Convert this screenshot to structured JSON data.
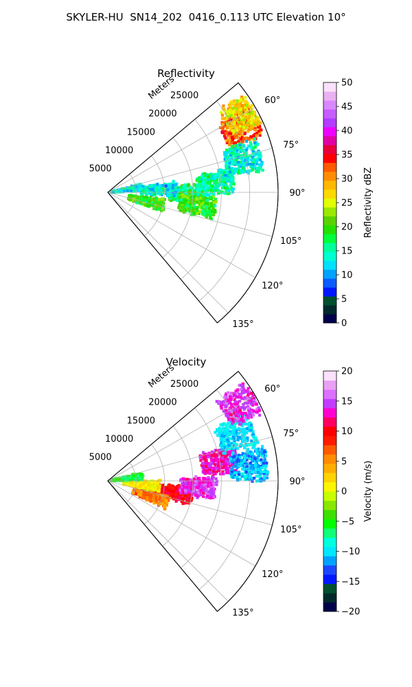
{
  "figure_title": "SKYLER-HU  SN14_202  0416_0.113 UTC Elevation 10°",
  "chart_data": [
    {
      "type": "heatmap",
      "subtype": "polar-sector radar PPI",
      "title": "Reflectivity",
      "radial_axis_label": "Meters",
      "radial_ticks": [
        5000,
        10000,
        15000,
        20000,
        25000
      ],
      "radial_tick_labels": [
        "5000",
        "10000",
        "15000",
        "20000",
        "25000"
      ],
      "angular_range_deg": [
        50,
        140
      ],
      "angular_ticks": [
        60,
        75,
        90,
        105,
        120,
        135
      ],
      "angular_tick_labels": [
        "60°",
        "75°",
        "90°",
        "105°",
        "120°",
        "135°"
      ],
      "grid": true,
      "colorbar": {
        "label": "Reflectivity dBZ",
        "range": [
          0,
          50
        ],
        "ticks": [
          0,
          5,
          10,
          15,
          20,
          25,
          30,
          35,
          40,
          45,
          50
        ],
        "tick_labels": [
          "0",
          "5",
          "10",
          "15",
          "20",
          "25",
          "30",
          "35",
          "40",
          "45",
          "50"
        ]
      },
      "echo_cells": [
        {
          "az": 91,
          "range_m": 14000,
          "value": 17
        },
        {
          "az": 98,
          "range_m": 16000,
          "value": 20
        },
        {
          "az": 85,
          "range_m": 19000,
          "value": 15
        },
        {
          "az": 64,
          "range_m": 26000,
          "value": 32
        },
        {
          "az": 60,
          "range_m": 27500,
          "value": 27
        },
        {
          "az": 76,
          "range_m": 24500,
          "value": 14
        },
        {
          "az": 87,
          "range_m": 9000,
          "value": 13
        },
        {
          "az": 103,
          "range_m": 7000,
          "value": 20
        },
        {
          "az": 82,
          "range_m": 3000,
          "value": 14
        }
      ]
    },
    {
      "type": "heatmap",
      "subtype": "polar-sector radar PPI",
      "title": "Velocity",
      "radial_axis_label": "Meters",
      "radial_ticks": [
        5000,
        10000,
        15000,
        20000,
        25000
      ],
      "radial_tick_labels": [
        "5000",
        "10000",
        "15000",
        "20000",
        "25000"
      ],
      "angular_range_deg": [
        50,
        140
      ],
      "angular_ticks": [
        60,
        75,
        90,
        105,
        120,
        135
      ],
      "angular_tick_labels": [
        "60°",
        "75°",
        "90°",
        "105°",
        "120°",
        "135°"
      ],
      "grid": true,
      "colorbar": {
        "label": "Velocity (m/s)",
        "range": [
          -20,
          20
        ],
        "ticks": [
          -20,
          -15,
          -10,
          -5,
          0,
          5,
          10,
          15,
          20
        ],
        "tick_labels": [
          "−20",
          "−15",
          "−10",
          "−5",
          "0",
          "5",
          "10",
          "15",
          "20"
        ]
      },
      "echo_cells": [
        {
          "az": 100,
          "range_m": 12000,
          "value": 10
        },
        {
          "az": 94,
          "range_m": 16000,
          "value": 14
        },
        {
          "az": 80,
          "range_m": 20000,
          "value": 13
        },
        {
          "az": 70,
          "range_m": 24000,
          "value": -10
        },
        {
          "az": 60,
          "range_m": 27000,
          "value": 14
        },
        {
          "az": 84,
          "range_m": 25000,
          "value": -11
        },
        {
          "az": 110,
          "range_m": 8000,
          "value": 6
        },
        {
          "az": 96,
          "range_m": 6000,
          "value": 1
        },
        {
          "az": 82,
          "range_m": 3000,
          "value": -5
        }
      ]
    }
  ]
}
